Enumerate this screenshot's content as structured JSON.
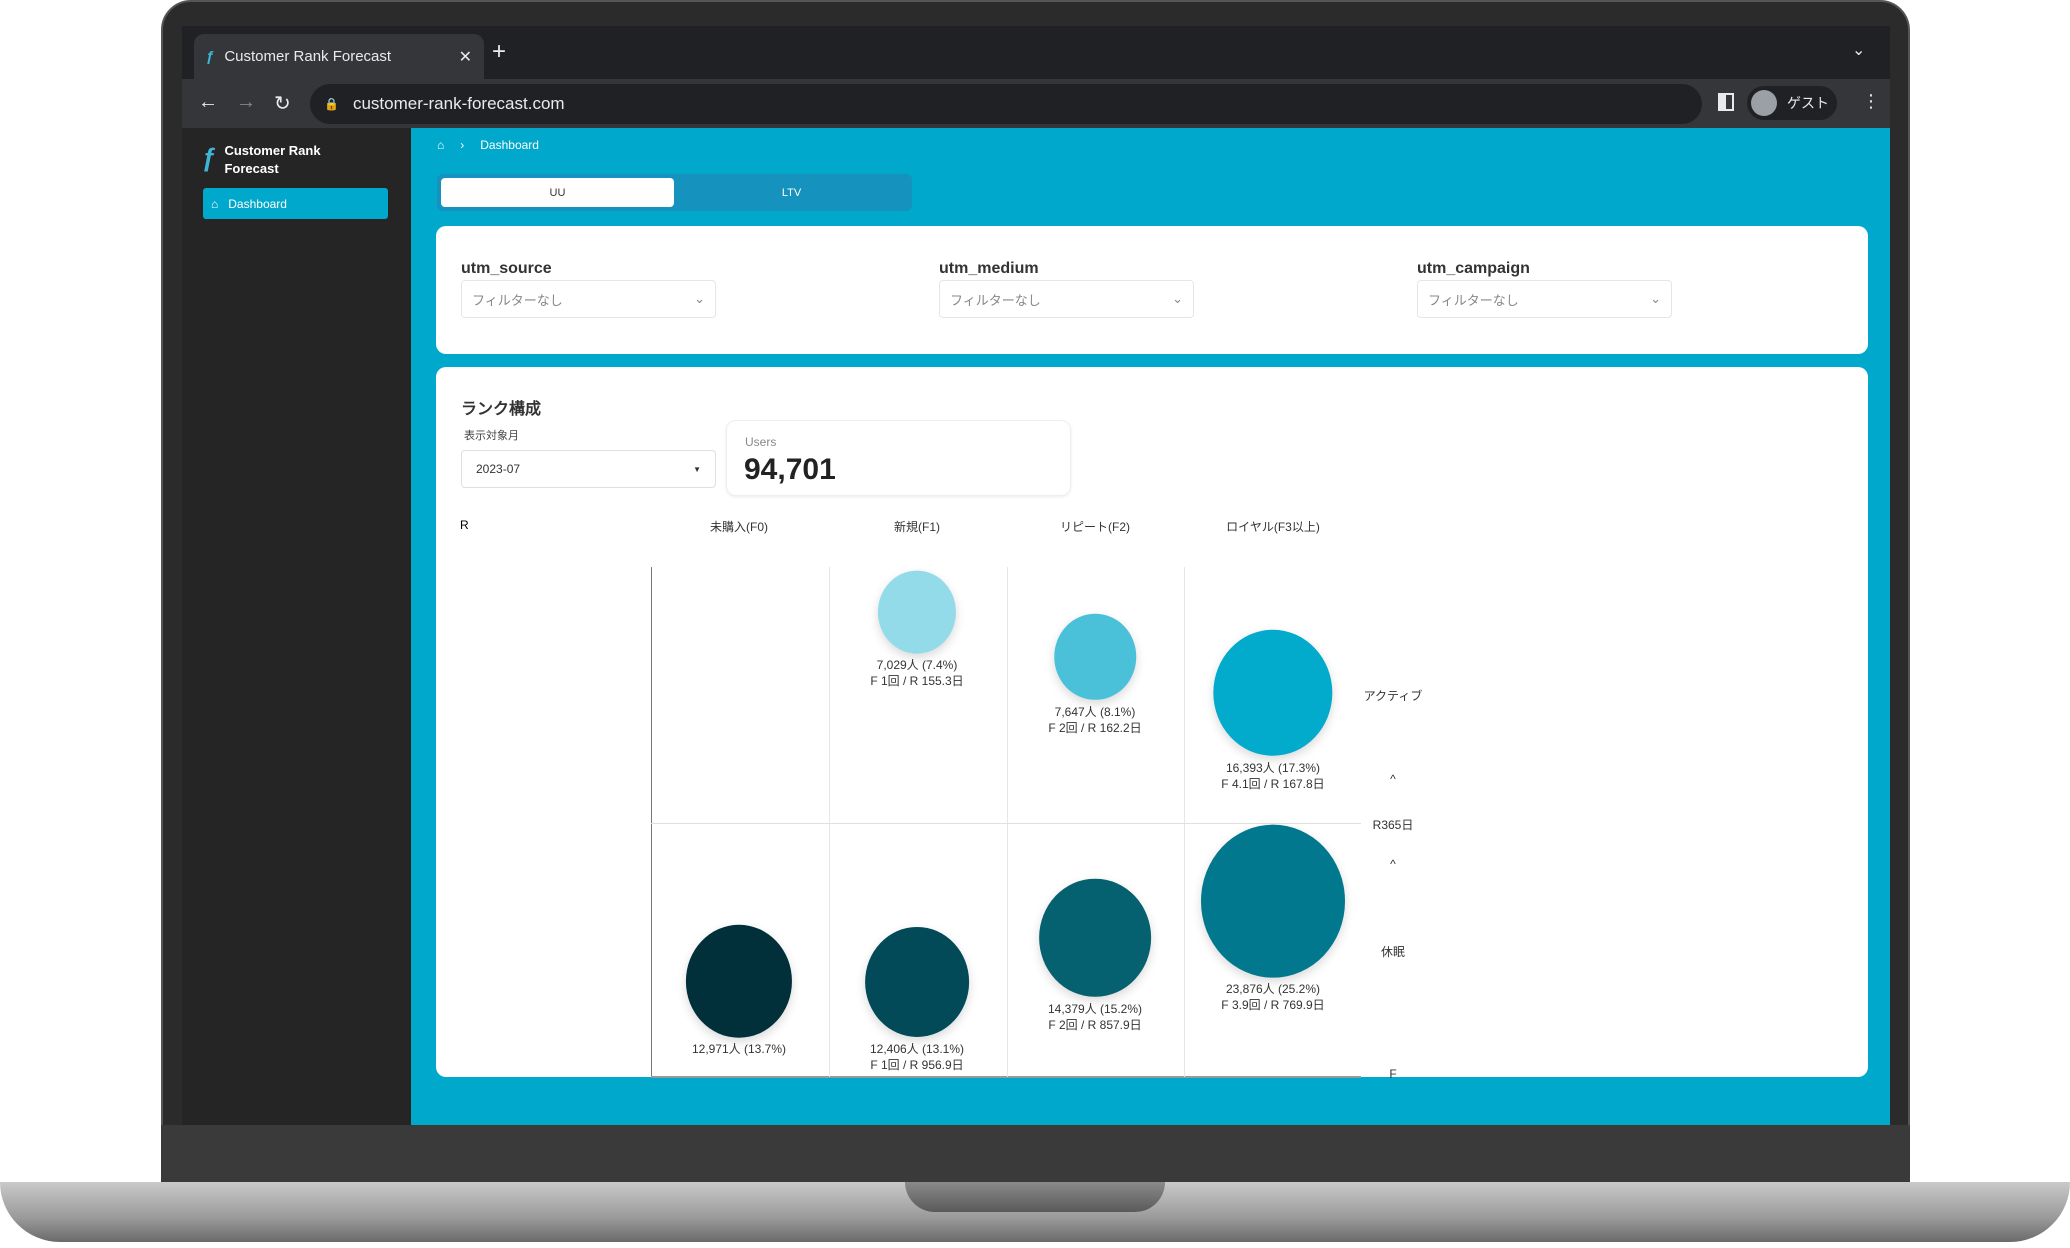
{
  "browser": {
    "tab_title": "Customer Rank Forecast",
    "url": "customer-rank-forecast.com",
    "profile": "ゲスト"
  },
  "sidebar": {
    "app_name_line1": "Customer Rank",
    "app_name_line2": "Forecast",
    "items": [
      {
        "label": "Dashboard"
      }
    ]
  },
  "breadcrumb": {
    "current": "Dashboard"
  },
  "tabs": [
    {
      "label": "UU",
      "active": true
    },
    {
      "label": "LTV",
      "active": false
    }
  ],
  "filters": [
    {
      "label": "utm_source",
      "value": "フィルターなし"
    },
    {
      "label": "utm_medium",
      "value": "フィルターなし"
    },
    {
      "label": "utm_campaign",
      "value": "フィルターなし"
    }
  ],
  "rank": {
    "title": "ランク構成",
    "month_label": "表示対象月",
    "month_value": "2023-07",
    "users_label": "Users",
    "users_value": "94,701"
  },
  "chart_data": {
    "type": "bubble-matrix",
    "y_axis_label": "R",
    "x_axis_label": "F",
    "columns": [
      "未購入(F0)",
      "新規(F1)",
      "リピート(F2)",
      "ロイヤル(F3以上)"
    ],
    "rows": [
      "アクティブ",
      "休眠"
    ],
    "threshold_label": "R365日",
    "arrow": "^",
    "cells": [
      {
        "row": "アクティブ",
        "col": "新規(F1)",
        "users": 7029,
        "label1": "7,029人 (7.4%)",
        "label2": "F 1回 / R 155.3日",
        "color": "#93dbe8"
      },
      {
        "row": "アクティブ",
        "col": "リピート(F2)",
        "users": 7647,
        "label1": "7,647人 (8.1%)",
        "label2": "F 2回 / R 162.2日",
        "color": "#4bc0d9"
      },
      {
        "row": "アクティブ",
        "col": "ロイヤル(F3以上)",
        "users": 16393,
        "label1": "16,393人 (17.3%)",
        "label2": "F 4.1回 / R 167.8日",
        "color": "#02aacb"
      },
      {
        "row": "休眠",
        "col": "未購入(F0)",
        "users": 12971,
        "label1": "12,971人 (13.7%)",
        "label2": "",
        "color": "#012f3a"
      },
      {
        "row": "休眠",
        "col": "新規(F1)",
        "users": 12406,
        "label1": "12,406人 (13.1%)",
        "label2": "F 1回 / R 956.9日",
        "color": "#024a57"
      },
      {
        "row": "休眠",
        "col": "リピート(F2)",
        "users": 14379,
        "label1": "14,379人 (15.2%)",
        "label2": "F 2回 / R 857.9日",
        "color": "#05606f"
      },
      {
        "row": "休眠",
        "col": "ロイヤル(F3以上)",
        "users": 23876,
        "label1": "23,876人 (25.2%)",
        "label2": "F 3.9回 / R 769.9日",
        "color": "#01788e"
      }
    ]
  }
}
